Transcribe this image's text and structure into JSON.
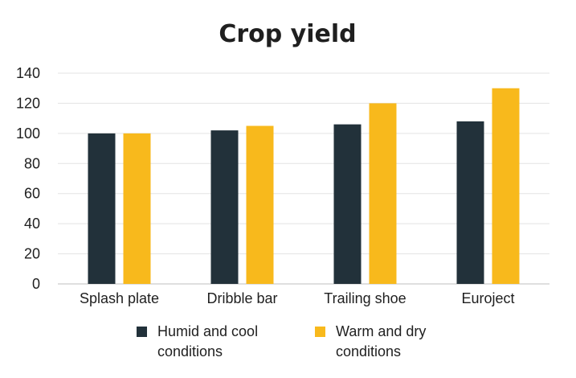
{
  "chart_data": {
    "type": "bar",
    "title": "Crop yield",
    "categories": [
      "Splash plate",
      "Dribble bar",
      "Trailing shoe",
      "Euroject"
    ],
    "series": [
      {
        "name": "Humid and cool conditions",
        "color": "#22313a",
        "values": [
          100,
          102,
          106,
          108
        ]
      },
      {
        "name": "Warm and dry conditions",
        "color": "#f8b91c",
        "values": [
          100,
          105,
          120,
          130
        ]
      }
    ],
    "ylim": [
      0,
      140
    ],
    "yticks": [
      0,
      20,
      40,
      60,
      80,
      100,
      120,
      140
    ],
    "grid": true,
    "legend": "bottom"
  }
}
